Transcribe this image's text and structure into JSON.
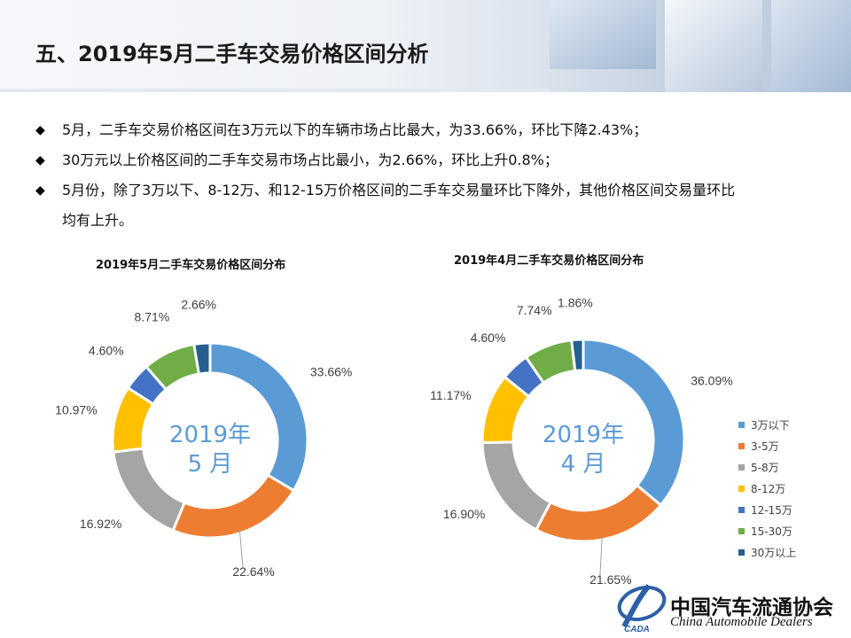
{
  "page": {
    "title": "五、2019年5月二手车交易价格区间分析",
    "bullets": [
      "5月，二手车交易价格区间在3万元以下的车辆市场占比最大，为33.66%，环比下降2.43%；",
      "30万元以上价格区间的二手车交易市场占比最小，为2.66%，环比上升0.8%；",
      "5月份，除了3万以下、8-12万、和12-15万价格区间的二手车交易量环比下降外，其他价格区间交易量环比",
      "均有上升。"
    ],
    "bullet_mark": "◆"
  },
  "footer": {
    "org_cn": "中国汽车流通协会",
    "org_en": "China Automobile Dealers",
    "logo_text": "CADA"
  },
  "chart_data": [
    {
      "type": "pie",
      "variant": "donut",
      "title": "2019年5月二手车交易价格区间分布",
      "center_label": [
        "2019年",
        "5 月"
      ],
      "categories": [
        "3万以下",
        "3-5万",
        "5-8万",
        "8-12万",
        "12-15万",
        "15-30万",
        "30万以上"
      ],
      "values": [
        33.66,
        22.64,
        16.92,
        10.97,
        4.6,
        8.71,
        2.66
      ],
      "labels": [
        "33.66%",
        "22.64%",
        "16.92%",
        "10.97%",
        "4.60%",
        "8.71%",
        "2.66%"
      ],
      "colors": [
        "#5b9bd5",
        "#ed7d31",
        "#a5a5a5",
        "#ffc000",
        "#4472c4",
        "#70ad47",
        "#255e91"
      ]
    },
    {
      "type": "pie",
      "variant": "donut",
      "title": "2019年4月二手车交易价格区间分布",
      "center_label": [
        "2019年",
        "4 月"
      ],
      "categories": [
        "3万以下",
        "3-5万",
        "5-8万",
        "8-12万",
        "12-15万",
        "15-30万",
        "30万以上"
      ],
      "values": [
        36.09,
        21.65,
        16.9,
        11.17,
        4.6,
        7.74,
        1.86
      ],
      "labels": [
        "36.09%",
        "21.65%",
        "16.90%",
        "11.17%",
        "4.60%",
        "7.74%",
        "1.86%"
      ],
      "colors": [
        "#5b9bd5",
        "#ed7d31",
        "#a5a5a5",
        "#ffc000",
        "#4472c4",
        "#70ad47",
        "#255e91"
      ],
      "legend": "right"
    }
  ]
}
